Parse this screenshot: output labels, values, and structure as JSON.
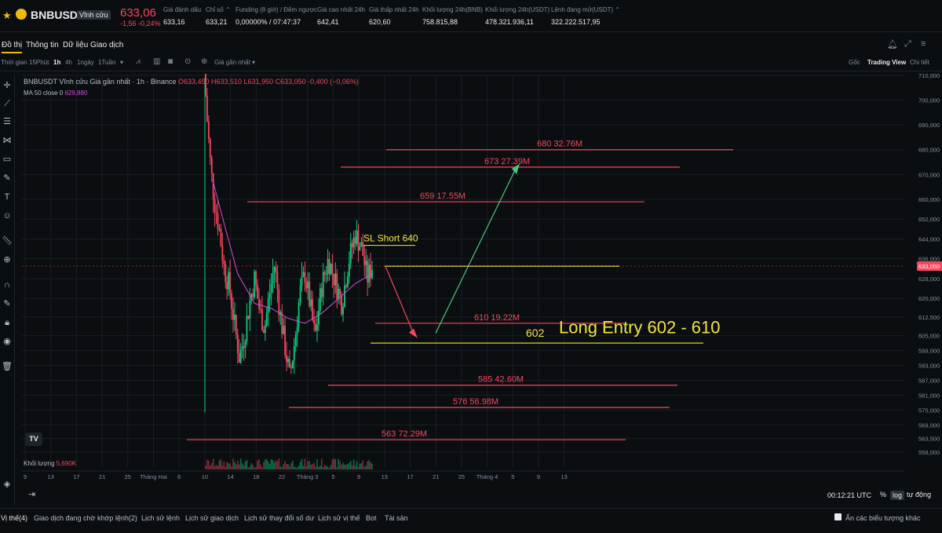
{
  "header": {
    "symbol": "BNBUSDT",
    "contract_type": "Vĩnh cửu",
    "last_price": "633,06",
    "change": "-1,56 -0,24%",
    "stats": [
      {
        "label": "Giá đánh dấu",
        "value": "633,16"
      },
      {
        "label": "Chỉ số ⌃",
        "value": "633,21"
      },
      {
        "label": "Funding (8 giờ) / Đếm ngược",
        "value": "0,00000% / 07:47:37"
      },
      {
        "label": "Giá cao nhất 24h",
        "value": "642,41"
      },
      {
        "label": "Giá thấp nhất 24h",
        "value": "620,60"
      },
      {
        "label": "Khối lượng 24h(BNB)",
        "value": "758.815,88"
      },
      {
        "label": "Khối lượng 24h(USDT)",
        "value": "478.321.936,11"
      },
      {
        "label": "Lệnh đang mở(USDT) ⌃",
        "value": "322.222.517,95"
      }
    ]
  },
  "tabs": [
    "Đồ thị",
    "Thông tin",
    "Dữ liệu Giao dịch"
  ],
  "toolbar": {
    "time_label": "Thời gian",
    "intervals": [
      "15Phút",
      "1h",
      "4h",
      "1ngày",
      "1Tuần"
    ],
    "active_interval": "1h",
    "price_type": "Giá gần nhất ▾",
    "views": [
      "Gốc",
      "Trading View",
      "Chi tiết"
    ],
    "active_view": "Trading View"
  },
  "legend": {
    "title": "BNBUSDT Vĩnh cửu Giá gần nhất · 1h · Binance",
    "ohlc": "O633,450  H633,510  L631,950  C633,050 -0,400 (−0,06%)",
    "ma_label": "MA 50 close 0",
    "ma_value": "629,880",
    "volume_label": "Khối lượng",
    "volume_value": "5,690K"
  },
  "chart_data": {
    "type": "candlestick",
    "symbol": "BNBUSDT",
    "interval": "1h",
    "y_axis_ticks": [
      710,
      700,
      690,
      680,
      670,
      660,
      652,
      644,
      636,
      628,
      620,
      612.5,
      605,
      599,
      593,
      587,
      581,
      575,
      569,
      563.5,
      558
    ],
    "y_axis_labels": [
      "710,000",
      "700,000",
      "690,000",
      "680,000",
      "670,000",
      "660,000",
      "652,000",
      "644,000",
      "636,000",
      "628,000",
      "620,000",
      "612,500",
      "605,000",
      "599,000",
      "593,000",
      "587,000",
      "581,000",
      "575,000",
      "569,000",
      "563,500",
      "558,000"
    ],
    "x_axis_labels": [
      "9",
      "13",
      "17",
      "21",
      "25",
      "Tháng Hai",
      "6",
      "10",
      "14",
      "18",
      "22",
      "Tháng 3",
      "5",
      "9",
      "13",
      "17",
      "21",
      "25",
      "Tháng 4",
      "5",
      "9",
      "13"
    ],
    "current_price": 633.05,
    "current_price_label": "633,050",
    "price_path": [
      [
        0,
        712
      ],
      [
        0.02,
        690
      ],
      [
        0.04,
        672
      ],
      [
        0.06,
        660
      ],
      [
        0.09,
        648
      ],
      [
        0.12,
        632
      ],
      [
        0.15,
        625
      ],
      [
        0.18,
        610
      ],
      [
        0.21,
        596
      ],
      [
        0.24,
        605
      ],
      [
        0.27,
        618
      ],
      [
        0.3,
        628
      ],
      [
        0.33,
        615
      ],
      [
        0.36,
        608
      ],
      [
        0.39,
        622
      ],
      [
        0.42,
        634
      ],
      [
        0.45,
        615
      ],
      [
        0.48,
        601
      ],
      [
        0.51,
        588
      ],
      [
        0.54,
        603
      ],
      [
        0.57,
        622
      ],
      [
        0.6,
        630
      ],
      [
        0.63,
        618
      ],
      [
        0.66,
        604
      ],
      [
        0.7,
        625
      ],
      [
        0.74,
        636
      ],
      [
        0.78,
        627
      ],
      [
        0.82,
        618
      ],
      [
        0.86,
        635
      ],
      [
        0.9,
        646
      ],
      [
        0.94,
        640
      ],
      [
        0.97,
        628
      ],
      [
        1.0,
        633
      ]
    ],
    "ma_path": [
      [
        0.05,
        668
      ],
      [
        0.12,
        650
      ],
      [
        0.2,
        630
      ],
      [
        0.3,
        618
      ],
      [
        0.4,
        616
      ],
      [
        0.5,
        612
      ],
      [
        0.6,
        610
      ],
      [
        0.7,
        614
      ],
      [
        0.8,
        620
      ],
      [
        0.9,
        626
      ],
      [
        1.0,
        630
      ]
    ],
    "annotations": [
      {
        "price": 680,
        "label": "680 32.76M",
        "color": "#f6465d"
      },
      {
        "price": 673,
        "label": "673 27.39M",
        "color": "#f6465d"
      },
      {
        "price": 659,
        "label": "659 17.55M",
        "color": "#f6465d"
      },
      {
        "price": 633,
        "label": "",
        "color": "#f0e442"
      },
      {
        "price": 610,
        "label": "610 19.22M",
        "color": "#f6465d"
      },
      {
        "price": 602,
        "label": "602",
        "color": "#f0e442"
      },
      {
        "price": 585,
        "label": "585 42.60M",
        "color": "#f6465d"
      },
      {
        "price": 576,
        "label": "576 56.98M",
        "color": "#f6465d"
      },
      {
        "price": 563,
        "label": "563 72.29M",
        "color": "#f6465d"
      }
    ],
    "text_annotations": [
      {
        "text": "SL Short 640",
        "color": "#f0e442"
      },
      {
        "text": "Long Entry 602 - 610",
        "color": "#f0e442"
      }
    ],
    "colors": {
      "up": "#0ecb81",
      "down": "#f6465d",
      "ma": "#d64bd6",
      "grid": "#1a1e24",
      "background": "#0b0e11"
    }
  },
  "bottom_bar": {
    "clock": "00:12:21 UTC",
    "options": [
      "%",
      "log",
      "tự động"
    ],
    "selected": "log"
  },
  "footer_tabs": [
    "Vị thế(4)",
    "Giao dịch đang chờ khớp lệnh(2)",
    "Lịch sử lệnh",
    "Lịch sử giao dịch",
    "Lịch sử thay đổi số dư",
    "Lịch sử vị thế",
    "Bot",
    "Tài sản"
  ],
  "footer_toggle": "Ẩn các biểu tượng khác"
}
